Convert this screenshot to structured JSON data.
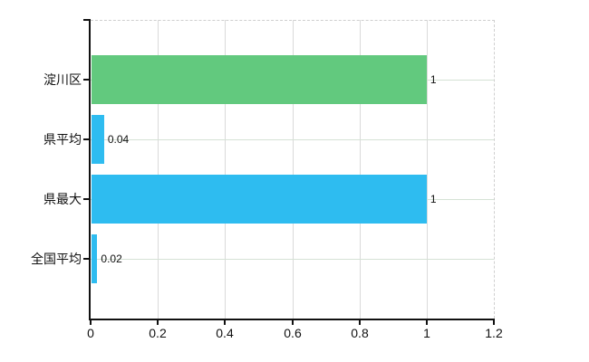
{
  "chart_data": {
    "type": "bar",
    "orientation": "horizontal",
    "title": "",
    "xlabel": "",
    "ylabel": "",
    "categories": [
      "淀川区",
      "県平均",
      "県最大",
      "全国平均"
    ],
    "values": [
      1,
      0.04,
      1,
      0.02
    ],
    "value_labels": [
      "1",
      "0.04",
      "1",
      "0.02"
    ],
    "bar_colors": [
      "#62c97e",
      "#2ebcf0",
      "#2ebcf0",
      "#2ebcf0"
    ],
    "xlim": [
      0,
      1.2
    ],
    "xticks": [
      0,
      0.2,
      0.4,
      0.6,
      0.8,
      1,
      1.2
    ],
    "xtick_labels": [
      "0",
      "0.2",
      "0.4",
      "0.6",
      "0.8",
      "1",
      "1.2"
    ],
    "grid": true,
    "legend": "none"
  },
  "colors": {
    "background": "#ffffff",
    "axis": "#111111",
    "vertical_gridline": "#dadada",
    "horizontal_gridline": "#d5e2d5",
    "dashed_border": "#cfcfcf",
    "text": "#111111"
  },
  "layout_labels": {
    "chart_name": "horizontal-bar-comparison-chart"
  }
}
